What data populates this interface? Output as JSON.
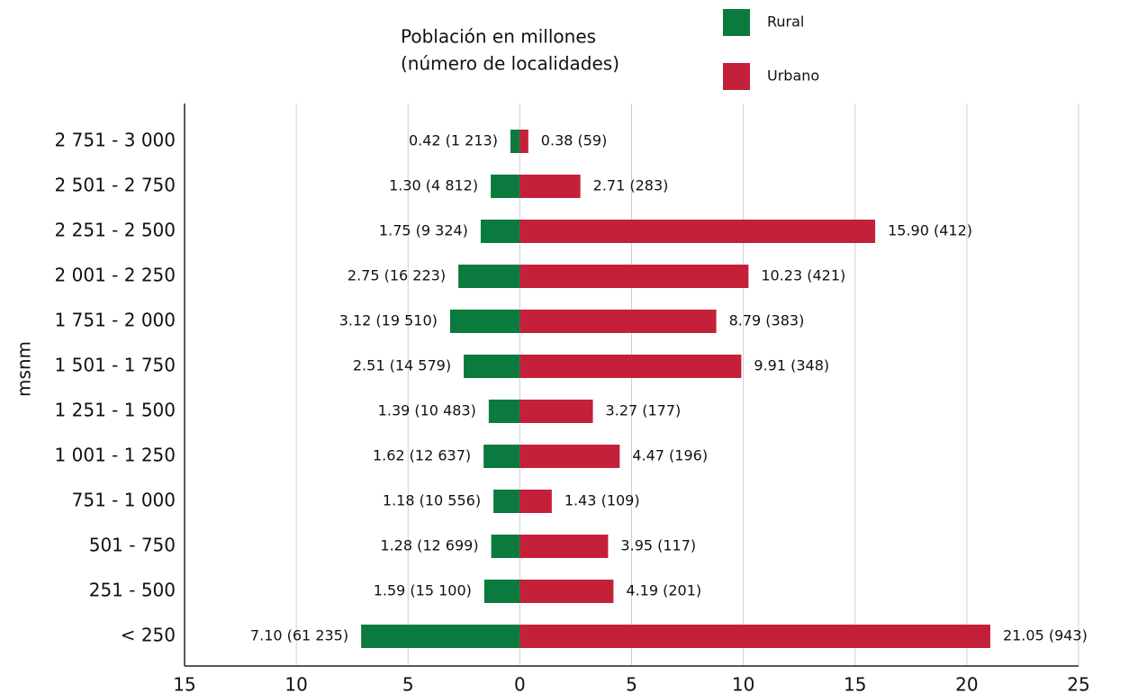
{
  "chart_data": {
    "type": "diverging-bar",
    "title": "Población en millones",
    "subtitle": "(número de localidades)",
    "ylabel": "msnm",
    "categories": [
      "2 751 - 3 000",
      "2 501 - 2 750",
      "2 251 - 2 500",
      "2 001 - 2 250",
      "1 751 - 2 000",
      "1 501 - 1 750",
      "1 251 - 1 500",
      "1 001 - 1 250",
      "751 - 1 000",
      "501 - 750",
      "251 - 500",
      "< 250"
    ],
    "series": [
      {
        "name": "Rural",
        "color": "#0a7a3e",
        "direction": "left",
        "values": [
          0.42,
          1.3,
          1.75,
          2.75,
          3.12,
          2.51,
          1.39,
          1.62,
          1.18,
          1.28,
          1.59,
          7.1
        ],
        "value_labels": [
          "0.42 (1 213)",
          "1.30 (4 812)",
          "1.75 (9 324)",
          "2.75 (16 223)",
          "3.12 (19 510)",
          "2.51 (14 579)",
          "1.39 (10 483)",
          "1.62 (12 637)",
          "1.18 (10 556)",
          "1.28 (12 699)",
          "1.59 (15 100)",
          "7.10 (61 235)"
        ]
      },
      {
        "name": "Urbano",
        "color": "#c4203a",
        "direction": "right",
        "values": [
          0.38,
          2.71,
          15.9,
          10.23,
          8.79,
          9.91,
          3.27,
          4.47,
          1.43,
          3.95,
          4.19,
          21.05
        ],
        "value_labels": [
          "0.38 (59)",
          "2.71 (283)",
          "15.90 (412)",
          "10.23 (421)",
          "8.79 (383)",
          "9.91 (348)",
          "3.27 (177)",
          "4.47 (196)",
          "1.43 (109)",
          "3.95 (117)",
          "4.19 (201)",
          "21.05 (943)"
        ]
      }
    ],
    "xlim": [
      -15,
      25
    ],
    "xticks": [
      {
        "value": -15,
        "label": "15"
      },
      {
        "value": -10,
        "label": "10"
      },
      {
        "value": -5,
        "label": "5"
      },
      0,
      5,
      10,
      15,
      20,
      25
    ],
    "grid": true
  }
}
